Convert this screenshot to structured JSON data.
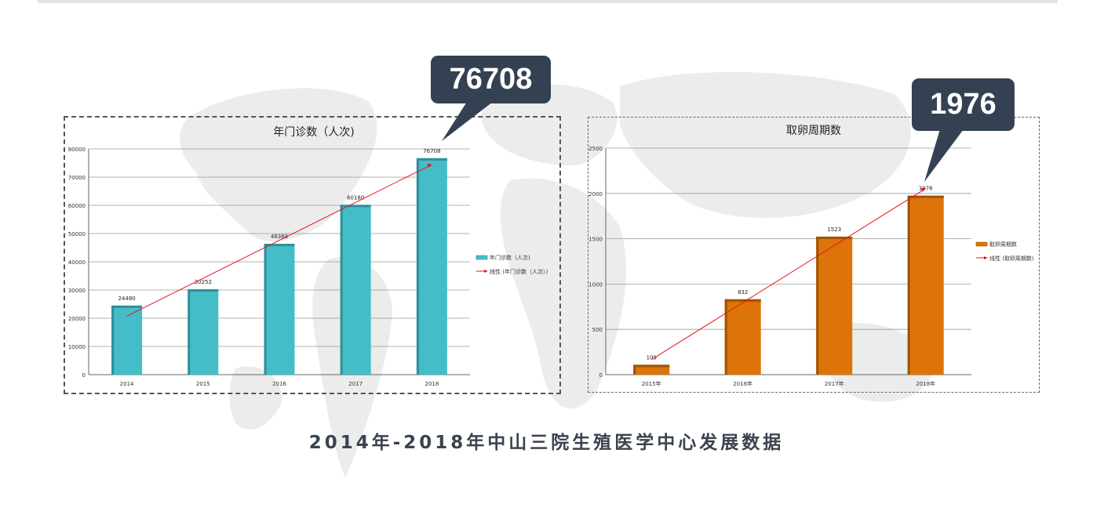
{
  "caption": "2014年-2018年中山三院生殖医学中心发展数据",
  "callouts": {
    "left": "76708",
    "right": "1976"
  },
  "colors": {
    "bar1": "#45bdc9",
    "bar1_dark": "#2f8f99",
    "bar2": "#dd7409",
    "bar2_dark": "#9e5206",
    "trend": "#e8141b",
    "grid": "#9a9a9a",
    "callout_bg": "#344152"
  },
  "chart_data": [
    {
      "type": "bar",
      "title": "年门诊数（人次)",
      "categories": [
        "2014",
        "2015",
        "2016",
        "2017",
        "2018"
      ],
      "series": [
        {
          "name": "年门诊数（人次)",
          "values": [
            24480,
            30252,
            46369,
            60180,
            76708
          ]
        }
      ],
      "trendline": {
        "name": "线性 (年门诊数（人次）)"
      },
      "ylim": [
        0,
        80000
      ],
      "yticks": [
        "0",
        "10000",
        "20000",
        "30000",
        "40000",
        "50000",
        "60000",
        "70000",
        "80000"
      ],
      "grid": true,
      "legend": "right"
    },
    {
      "type": "bar",
      "title": "取卵周期数",
      "categories": [
        "2015年",
        "2016年",
        "2017年",
        "2018年"
      ],
      "series": [
        {
          "name": "取卵周期数",
          "values": [
            109,
            832,
            1523,
            1976
          ]
        }
      ],
      "trendline": {
        "name": "线性 (取卵周期数)"
      },
      "ylim": [
        0,
        2500
      ],
      "yticks": [
        "0",
        "500",
        "1000",
        "1500",
        "2000",
        "2500"
      ],
      "grid": true,
      "legend": "right"
    }
  ]
}
